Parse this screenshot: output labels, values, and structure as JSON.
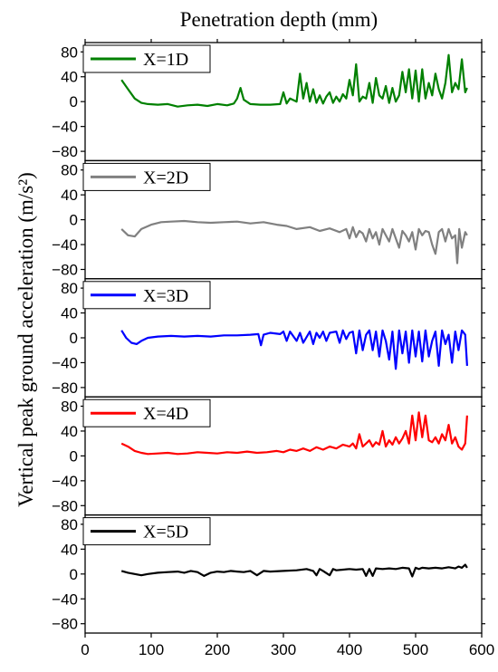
{
  "chart_data": {
    "type": "line",
    "title": "Penetration depth (mm)",
    "ylabel": "Vertical peak ground acceleration (m/s²)",
    "xlim": [
      0,
      600
    ],
    "x_ticks": [
      "0",
      "100",
      "200",
      "300",
      "400",
      "500",
      "600"
    ],
    "ylim": [
      -95,
      95
    ],
    "y_ticks": [
      "80",
      "40",
      "0",
      "−40",
      "−80"
    ],
    "y_tick_values": [
      80,
      40,
      0,
      -40,
      -80
    ],
    "grid": false,
    "legend_placement": "top-left",
    "series": [
      {
        "name": "X=1D",
        "color": "#008000",
        "x": [
          55,
          65,
          75,
          85,
          95,
          110,
          125,
          140,
          155,
          170,
          185,
          200,
          215,
          225,
          230,
          235,
          240,
          250,
          265,
          280,
          295,
          300,
          305,
          310,
          320,
          325,
          330,
          335,
          340,
          345,
          350,
          355,
          360,
          365,
          370,
          375,
          380,
          385,
          390,
          395,
          400,
          405,
          410,
          415,
          420,
          425,
          430,
          435,
          440,
          445,
          450,
          455,
          460,
          465,
          470,
          475,
          480,
          485,
          490,
          495,
          500,
          505,
          510,
          515,
          520,
          525,
          530,
          535,
          540,
          545,
          550,
          555,
          560,
          565,
          570,
          575,
          578
        ],
        "y": [
          35,
          20,
          5,
          -2,
          -4,
          -5,
          -4,
          -8,
          -6,
          -5,
          -7,
          -4,
          -6,
          -3,
          5,
          22,
          3,
          -4,
          -5,
          -5,
          -4,
          15,
          -3,
          5,
          0,
          45,
          5,
          30,
          0,
          20,
          -2,
          10,
          -3,
          8,
          15,
          -2,
          8,
          0,
          12,
          5,
          35,
          10,
          60,
          0,
          8,
          5,
          30,
          -2,
          38,
          10,
          5,
          25,
          -2,
          22,
          0,
          10,
          48,
          15,
          52,
          5,
          50,
          0,
          52,
          5,
          30,
          10,
          45,
          20,
          5,
          30,
          75,
          15,
          30,
          20,
          68,
          15,
          22
        ]
      },
      {
        "name": "X=2D",
        "color": "#808080",
        "x": [
          55,
          65,
          75,
          85,
          100,
          115,
          130,
          150,
          170,
          190,
          210,
          230,
          250,
          270,
          290,
          305,
          320,
          340,
          355,
          370,
          385,
          395,
          400,
          405,
          410,
          415,
          420,
          425,
          430,
          435,
          440,
          445,
          450,
          455,
          460,
          465,
          470,
          475,
          480,
          485,
          490,
          495,
          500,
          505,
          510,
          515,
          520,
          525,
          530,
          535,
          540,
          545,
          550,
          555,
          560,
          563,
          566,
          570,
          575,
          578
        ],
        "y": [
          -15,
          -25,
          -27,
          -15,
          -8,
          -4,
          -3,
          -2,
          -4,
          -5,
          -4,
          -3,
          -6,
          -4,
          -8,
          -10,
          -15,
          -12,
          -18,
          -14,
          -20,
          -15,
          -30,
          -12,
          -28,
          -18,
          -22,
          -35,
          -15,
          -30,
          -20,
          -40,
          -15,
          -25,
          -35,
          -15,
          -30,
          -45,
          -18,
          -25,
          -35,
          -20,
          -48,
          -15,
          -25,
          -18,
          -20,
          -40,
          -55,
          -20,
          -15,
          -35,
          -15,
          -30,
          -25,
          -70,
          -15,
          -45,
          -20,
          -25
        ]
      },
      {
        "name": "X=3D",
        "color": "#0000ff",
        "x": [
          55,
          62,
          70,
          78,
          85,
          95,
          110,
          130,
          150,
          170,
          190,
          210,
          230,
          250,
          262,
          266,
          270,
          280,
          295,
          300,
          305,
          310,
          320,
          325,
          330,
          340,
          345,
          350,
          355,
          360,
          365,
          370,
          380,
          385,
          390,
          395,
          400,
          405,
          410,
          415,
          420,
          425,
          430,
          435,
          440,
          445,
          450,
          455,
          460,
          465,
          470,
          475,
          480,
          485,
          490,
          495,
          500,
          505,
          510,
          515,
          520,
          525,
          530,
          535,
          540,
          545,
          550,
          555,
          560,
          565,
          570,
          575,
          578
        ],
        "y": [
          12,
          0,
          -8,
          -10,
          -5,
          0,
          2,
          3,
          2,
          3,
          2,
          4,
          4,
          5,
          6,
          -12,
          5,
          8,
          6,
          10,
          -5,
          10,
          -5,
          8,
          -8,
          10,
          -10,
          8,
          0,
          10,
          -5,
          8,
          10,
          -8,
          12,
          -2,
          8,
          10,
          -25,
          12,
          -20,
          5,
          12,
          -20,
          10,
          -30,
          12,
          -5,
          -35,
          10,
          -50,
          12,
          -25,
          10,
          -40,
          12,
          -30,
          10,
          -38,
          12,
          -30,
          -5,
          10,
          -45,
          12,
          -10,
          5,
          -40,
          10,
          -20,
          12,
          5,
          -45
        ]
      },
      {
        "name": "X=4D",
        "color": "#ff0000",
        "x": [
          55,
          65,
          75,
          85,
          95,
          110,
          125,
          140,
          155,
          170,
          185,
          200,
          215,
          230,
          245,
          260,
          275,
          290,
          300,
          310,
          320,
          330,
          340,
          350,
          360,
          370,
          380,
          390,
          400,
          405,
          410,
          415,
          420,
          425,
          430,
          435,
          440,
          445,
          450,
          455,
          460,
          465,
          470,
          475,
          480,
          485,
          490,
          495,
          500,
          505,
          510,
          515,
          520,
          525,
          530,
          535,
          540,
          545,
          550,
          555,
          560,
          565,
          570,
          575,
          578
        ],
        "y": [
          20,
          15,
          8,
          5,
          3,
          4,
          5,
          3,
          4,
          6,
          5,
          4,
          6,
          5,
          7,
          5,
          6,
          8,
          6,
          10,
          8,
          12,
          8,
          14,
          10,
          15,
          12,
          18,
          15,
          20,
          12,
          35,
          15,
          20,
          25,
          15,
          22,
          18,
          40,
          15,
          25,
          18,
          30,
          20,
          28,
          40,
          20,
          65,
          25,
          70,
          30,
          65,
          25,
          22,
          30,
          20,
          35,
          25,
          50,
          20,
          30,
          15,
          10,
          20,
          65
        ]
      },
      {
        "name": "X=5D",
        "color": "#000000",
        "x": [
          55,
          65,
          75,
          85,
          95,
          110,
          125,
          140,
          150,
          160,
          170,
          180,
          190,
          200,
          210,
          220,
          230,
          240,
          250,
          260,
          270,
          280,
          300,
          320,
          335,
          345,
          350,
          355,
          360,
          370,
          375,
          380,
          390,
          400,
          410,
          420,
          425,
          430,
          435,
          440,
          450,
          460,
          470,
          480,
          490,
          495,
          500,
          505,
          510,
          520,
          530,
          540,
          550,
          560,
          565,
          570,
          575,
          578
        ],
        "y": [
          5,
          2,
          0,
          -2,
          0,
          2,
          3,
          4,
          2,
          5,
          3,
          -3,
          2,
          4,
          3,
          5,
          4,
          3,
          5,
          -2,
          5,
          4,
          5,
          6,
          8,
          5,
          -2,
          8,
          5,
          -2,
          8,
          6,
          7,
          8,
          7,
          8,
          -3,
          8,
          -3,
          9,
          8,
          9,
          8,
          10,
          9,
          -4,
          10,
          8,
          10,
          9,
          10,
          9,
          11,
          9,
          12,
          10,
          15,
          10
        ]
      }
    ]
  }
}
